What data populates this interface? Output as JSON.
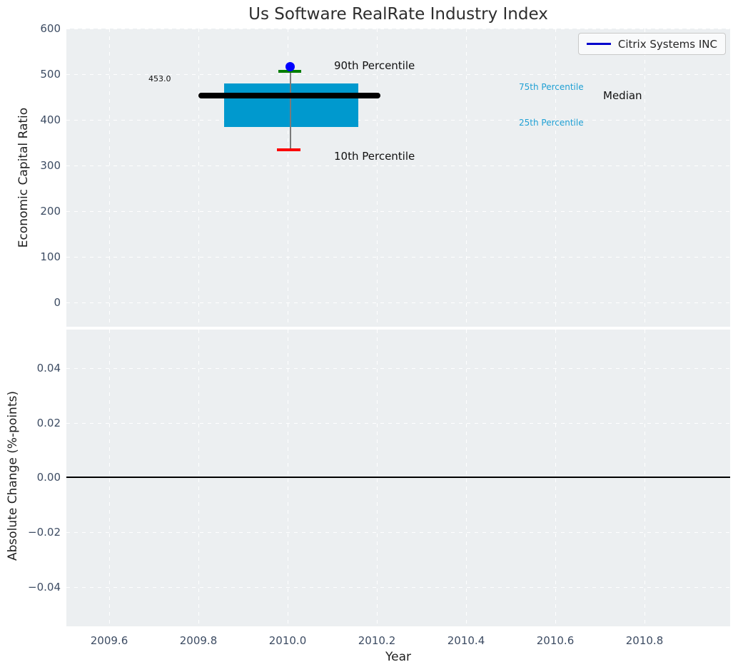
{
  "title": "Us Software RealRate Industry Index",
  "legend": {
    "label": "Citrix Systems INC"
  },
  "top_chart": {
    "ylabel": "Economic Capital Ratio",
    "yticks": [
      "600",
      "500",
      "400",
      "300",
      "200",
      "100",
      "0"
    ],
    "annotations": {
      "p90_label": "90th Percentile",
      "p10_label": "10th Percentile",
      "p75_label": "75th Percentile",
      "p25_label": "25th Percentile",
      "median_label": "Median",
      "median_value": "453.0"
    }
  },
  "bottom_chart": {
    "ylabel": "Absolute Change (%-points)",
    "yticks": [
      "0.04",
      "0.02",
      "0.00",
      "−0.02",
      "−0.04"
    ]
  },
  "x_axis": {
    "label": "Year",
    "ticks": [
      "2009.6",
      "2009.8",
      "2010.0",
      "2010.2",
      "2010.4",
      "2010.6",
      "2010.8"
    ]
  },
  "colors": {
    "plot_bg": "#ECEFF1",
    "box_fill": "#0099CE",
    "median_line": "#000000",
    "p90_tick": "#007D00",
    "p10_tick": "#FB0000",
    "company_marker": "#0000FF",
    "legend_line": "#0000CC",
    "percentile_text": "#20A0D4",
    "whisker": "#7a7a7a"
  },
  "chart_data": [
    {
      "type": "box",
      "title": "Us Software RealRate Industry Index",
      "ylabel": "Economic Capital Ratio",
      "xlabel": "Year",
      "x_center": 2010.0,
      "box": {
        "x_start": 2009.85,
        "x_end": 2010.15,
        "p10": 335,
        "p25": 385,
        "median": 453,
        "p75": 480,
        "p90": 505
      },
      "median_line_x": [
        2009.8,
        2010.2
      ],
      "median_value_label": 453.0,
      "series": [
        {
          "name": "Citrix Systems INC",
          "type": "scatter",
          "x": [
            2010.0
          ],
          "y": [
            515
          ]
        }
      ],
      "xlim": [
        2009.5,
        2010.99
      ],
      "ylim": [
        -53,
        600
      ],
      "grid": true,
      "legend_position": "upper right"
    },
    {
      "type": "line",
      "ylabel": "Absolute Change (%-points)",
      "xlabel": "Year",
      "zero_line_y": 0.0,
      "series": [],
      "xlim": [
        2009.5,
        2010.99
      ],
      "ylim": [
        -0.054,
        0.054
      ],
      "yticks": [
        0.04,
        0.02,
        0.0,
        -0.02,
        -0.04
      ],
      "xticks": [
        2009.6,
        2009.8,
        2010.0,
        2010.2,
        2010.4,
        2010.6,
        2010.8
      ],
      "grid": true
    }
  ]
}
